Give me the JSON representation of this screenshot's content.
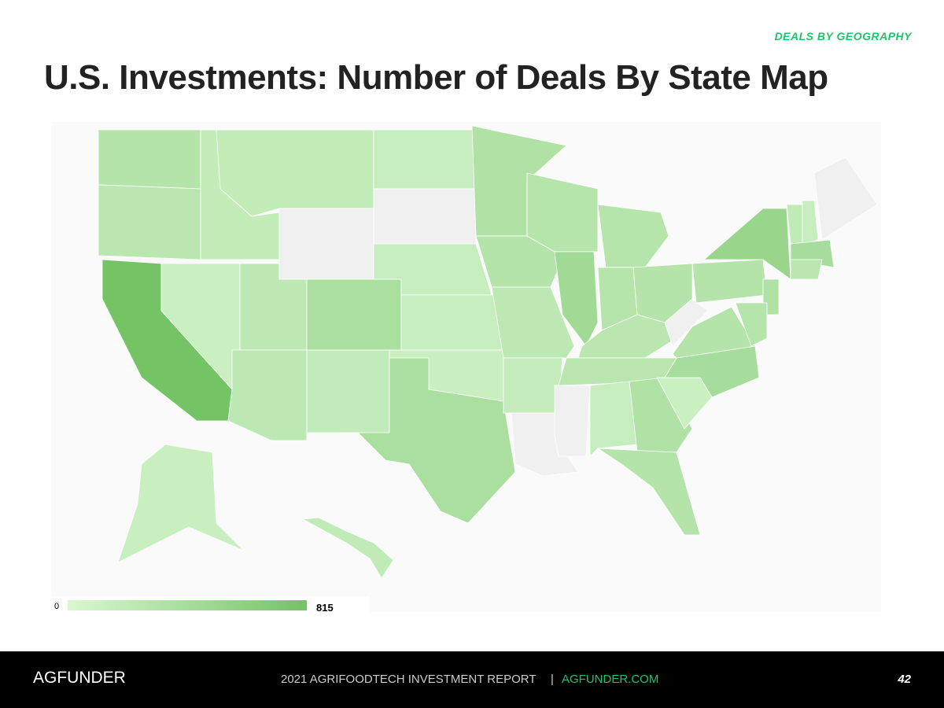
{
  "header": {
    "section": "DEALS BY GEOGRAPHY",
    "title": "U.S. Investments: Number of Deals By State Map"
  },
  "map": {
    "values": [
      300,
      250,
      815,
      120,
      180,
      180,
      null,
      220,
      380,
      230,
      190,
      150,
      null,
      150,
      150,
      130,
      380,
      330,
      300,
      230,
      160,
      null,
      280,
      450,
      280,
      280,
      300,
      250,
      260,
      null,
      150,
      330,
      300,
      120,
      400,
      300,
      null,
      300,
      520,
      330,
      280,
      200,
      150,
      400,
      250,
      null,
      130,
      200
    ],
    "scale": {
      "min": 0,
      "max": 815,
      "min_color": "#d9f7d1",
      "max_color": "#74c365",
      "no_data_color": "#f0f0f0"
    }
  },
  "footer": {
    "logo": "AGFUNDER",
    "report": "2021 AGRIFOODTECH INVESTMENT REPORT",
    "separator": "|",
    "site": "AGFUNDER.COM",
    "page": "42"
  }
}
